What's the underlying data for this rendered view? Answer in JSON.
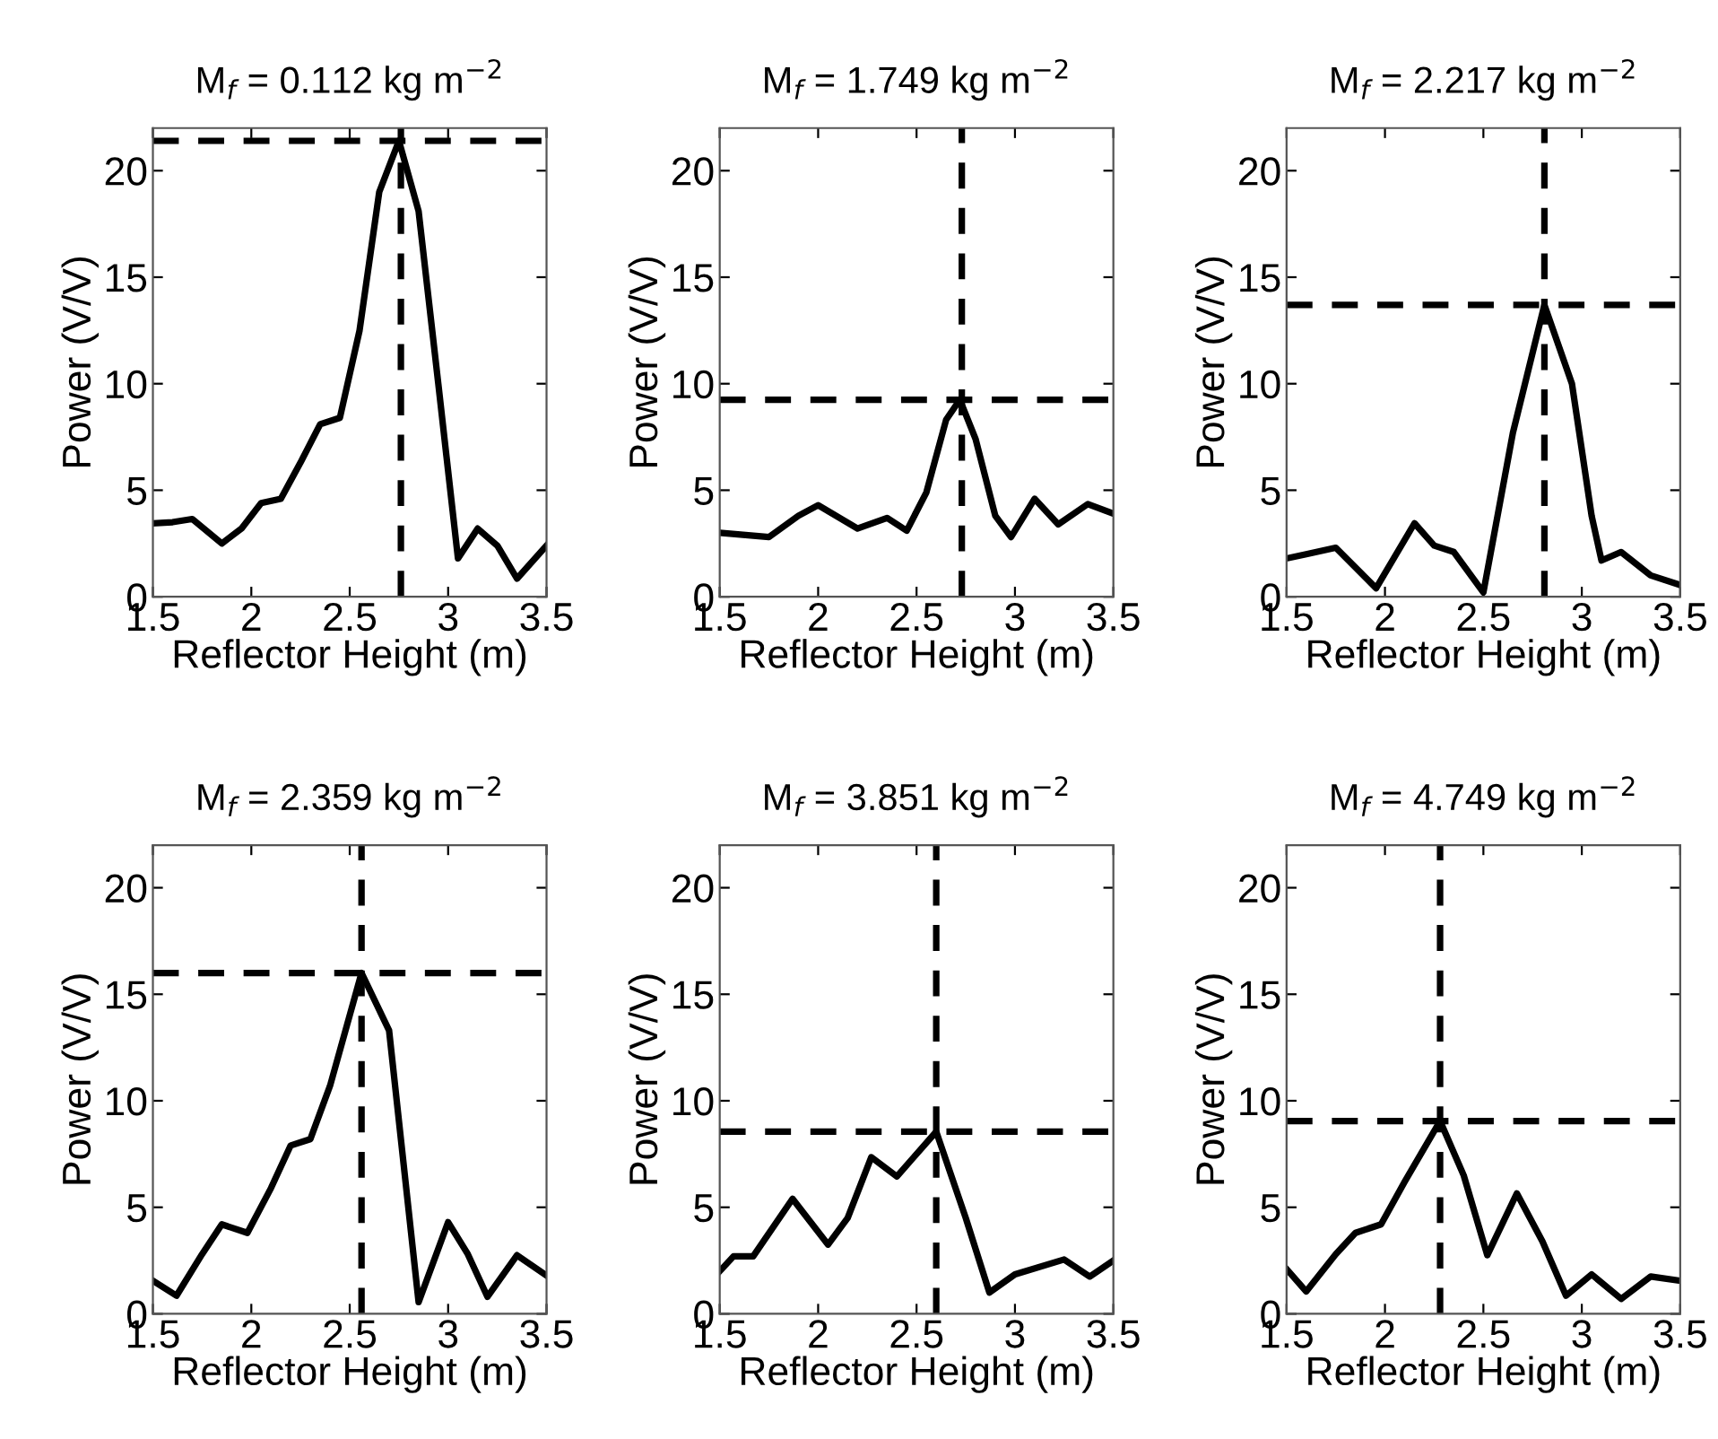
{
  "chart_data": [
    {
      "type": "line",
      "title": "M$_{f}$ = 0.112 kg m$^{−2}$",
      "xlabel": "Reflector Height (m)",
      "ylabel": "Power (V/V)",
      "xlim": [
        1.5,
        3.5
      ],
      "ylim": [
        0,
        22
      ],
      "xticks": [
        1.5,
        2,
        2.5,
        3,
        3.5
      ],
      "yticks": [
        0,
        5,
        10,
        15,
        20
      ],
      "grid": false,
      "legend": false,
      "line_style": "solid",
      "series": [
        {
          "color": "#000000",
          "x": [
            1.5,
            1.6,
            1.7,
            1.85,
            1.95,
            2.05,
            2.15,
            2.25,
            2.35,
            2.45,
            2.55,
            2.65,
            2.75,
            2.85,
            2.95,
            3.05,
            3.15,
            3.25,
            3.35,
            3.5
          ],
          "values": [
            3.45,
            3.5,
            3.65,
            2.5,
            3.2,
            4.4,
            4.6,
            6.3,
            8.1,
            8.4,
            12.5,
            19,
            21.4,
            18.1,
            10,
            1.8,
            3.2,
            2.4,
            0.85,
            2.4
          ]
        }
      ],
      "ref_lines": [
        {
          "axis": "x",
          "value": 2.76,
          "color": "#000000",
          "line_style": "dashed"
        },
        {
          "axis": "y",
          "value": 21.4,
          "color": "#000000",
          "line_style": "dashed"
        }
      ]
    },
    {
      "type": "line",
      "title": "M$_{f}$ = 1.749 kg m$^{−2}$",
      "xlabel": "Reflector Height (m)",
      "ylabel": "Power (V/V)",
      "xlim": [
        1.5,
        3.5
      ],
      "ylim": [
        0,
        22
      ],
      "xticks": [
        1.5,
        2,
        2.5,
        3,
        3.5
      ],
      "yticks": [
        0,
        5,
        10,
        15,
        20
      ],
      "grid": false,
      "legend": false,
      "line_style": "solid",
      "series": [
        {
          "color": "#000000",
          "x": [
            1.5,
            1.75,
            1.9,
            2.0,
            2.2,
            2.35,
            2.45,
            2.55,
            2.65,
            2.72,
            2.8,
            2.9,
            2.98,
            3.1,
            3.22,
            3.37,
            3.5
          ],
          "values": [
            3.0,
            2.8,
            3.8,
            4.3,
            3.2,
            3.7,
            3.1,
            4.9,
            8.3,
            9.25,
            7.4,
            3.8,
            2.8,
            4.6,
            3.4,
            4.35,
            3.9
          ]
        }
      ],
      "ref_lines": [
        {
          "axis": "x",
          "value": 2.73,
          "color": "#000000",
          "line_style": "dashed"
        },
        {
          "axis": "y",
          "value": 9.25,
          "color": "#000000",
          "line_style": "dashed"
        }
      ]
    },
    {
      "type": "line",
      "title": "M$_{f}$ = 2.217 kg m$^{−2}$",
      "xlabel": "Reflector Height (m)",
      "ylabel": "Power (V/V)",
      "xlim": [
        1.5,
        3.5
      ],
      "ylim": [
        0,
        22
      ],
      "xticks": [
        1.5,
        2,
        2.5,
        3,
        3.5
      ],
      "yticks": [
        0,
        5,
        10,
        15,
        20
      ],
      "grid": false,
      "legend": false,
      "line_style": "solid",
      "series": [
        {
          "color": "#000000",
          "x": [
            1.5,
            1.6,
            1.75,
            1.955,
            2.15,
            2.25,
            2.35,
            2.5,
            2.65,
            2.81,
            2.95,
            3.05,
            3.1,
            3.2,
            3.35,
            3.5
          ],
          "values": [
            1.8,
            2.0,
            2.3,
            0.4,
            3.45,
            2.4,
            2.1,
            0.2,
            7.7,
            13.7,
            10,
            3.8,
            1.7,
            2.1,
            1.0,
            0.55
          ]
        }
      ],
      "ref_lines": [
        {
          "axis": "x",
          "value": 2.81,
          "color": "#000000",
          "line_style": "dashed"
        },
        {
          "axis": "y",
          "value": 13.7,
          "color": "#000000",
          "line_style": "dashed"
        }
      ]
    },
    {
      "type": "line",
      "title": "M$_{f}$ = 2.359 kg m$^{−2}$",
      "xlabel": "Reflector Height (m)",
      "ylabel": "Power (V/V)",
      "xlim": [
        1.5,
        3.5
      ],
      "ylim": [
        0,
        22
      ],
      "xticks": [
        1.5,
        2,
        2.5,
        3,
        3.5
      ],
      "yticks": [
        0,
        5,
        10,
        15,
        20
      ],
      "grid": false,
      "legend": false,
      "line_style": "solid",
      "series": [
        {
          "color": "#000000",
          "x": [
            1.5,
            1.62,
            1.75,
            1.85,
            1.98,
            2.1,
            2.2,
            2.3,
            2.4,
            2.56,
            2.7,
            2.85,
            3.0,
            3.1,
            3.2,
            3.35,
            3.5
          ],
          "values": [
            1.55,
            0.85,
            2.8,
            4.2,
            3.8,
            5.9,
            7.9,
            8.2,
            10.7,
            16.0,
            13.3,
            0.55,
            4.3,
            2.8,
            0.8,
            2.75,
            1.8
          ]
        }
      ],
      "ref_lines": [
        {
          "axis": "x",
          "value": 2.56,
          "color": "#000000",
          "line_style": "dashed"
        },
        {
          "axis": "y",
          "value": 16.0,
          "color": "#000000",
          "line_style": "dashed"
        }
      ]
    },
    {
      "type": "line",
      "title": "M$_{f}$ = 3.851 kg m$^{−2}$",
      "xlabel": "Reflector Height (m)",
      "ylabel": "Power (V/V)",
      "xlim": [
        1.5,
        3.5
      ],
      "ylim": [
        0,
        22
      ],
      "xticks": [
        1.5,
        2,
        2.5,
        3,
        3.5
      ],
      "yticks": [
        0,
        5,
        10,
        15,
        20
      ],
      "grid": false,
      "legend": false,
      "line_style": "solid",
      "series": [
        {
          "color": "#000000",
          "x": [
            1.5,
            1.57,
            1.67,
            1.87,
            2.05,
            2.15,
            2.27,
            2.4,
            2.6,
            2.75,
            2.87,
            3.0,
            3.25,
            3.38,
            3.5
          ],
          "values": [
            2.0,
            2.7,
            2.7,
            5.4,
            3.25,
            4.5,
            7.35,
            6.45,
            8.55,
            4.5,
            1.0,
            1.85,
            2.55,
            1.75,
            2.5
          ]
        }
      ],
      "ref_lines": [
        {
          "axis": "x",
          "value": 2.6,
          "color": "#000000",
          "line_style": "dashed"
        },
        {
          "axis": "y",
          "value": 8.55,
          "color": "#000000",
          "line_style": "dashed"
        }
      ]
    },
    {
      "type": "line",
      "title": "M$_{f}$ = 4.749 kg m$^{−2}$",
      "xlabel": "Reflector Height (m)",
      "ylabel": "Power (V/V)",
      "xlim": [
        1.5,
        3.5
      ],
      "ylim": [
        0,
        22
      ],
      "xticks": [
        1.5,
        2,
        2.5,
        3,
        3.5
      ],
      "yticks": [
        0,
        5,
        10,
        15,
        20
      ],
      "grid": false,
      "legend": false,
      "line_style": "solid",
      "series": [
        {
          "color": "#000000",
          "x": [
            1.5,
            1.6,
            1.75,
            1.85,
            1.98,
            2.1,
            2.28,
            2.4,
            2.52,
            2.67,
            2.8,
            2.92,
            3.05,
            3.2,
            3.35,
            3.5
          ],
          "values": [
            2.1,
            1.05,
            2.8,
            3.8,
            4.2,
            6.2,
            9.05,
            6.5,
            2.75,
            5.65,
            3.4,
            0.85,
            1.85,
            0.7,
            1.75,
            1.55
          ]
        }
      ],
      "ref_lines": [
        {
          "axis": "x",
          "value": 2.28,
          "color": "#000000",
          "line_style": "dashed"
        },
        {
          "axis": "y",
          "value": 9.05,
          "color": "#000000",
          "line_style": "dashed"
        }
      ]
    }
  ]
}
